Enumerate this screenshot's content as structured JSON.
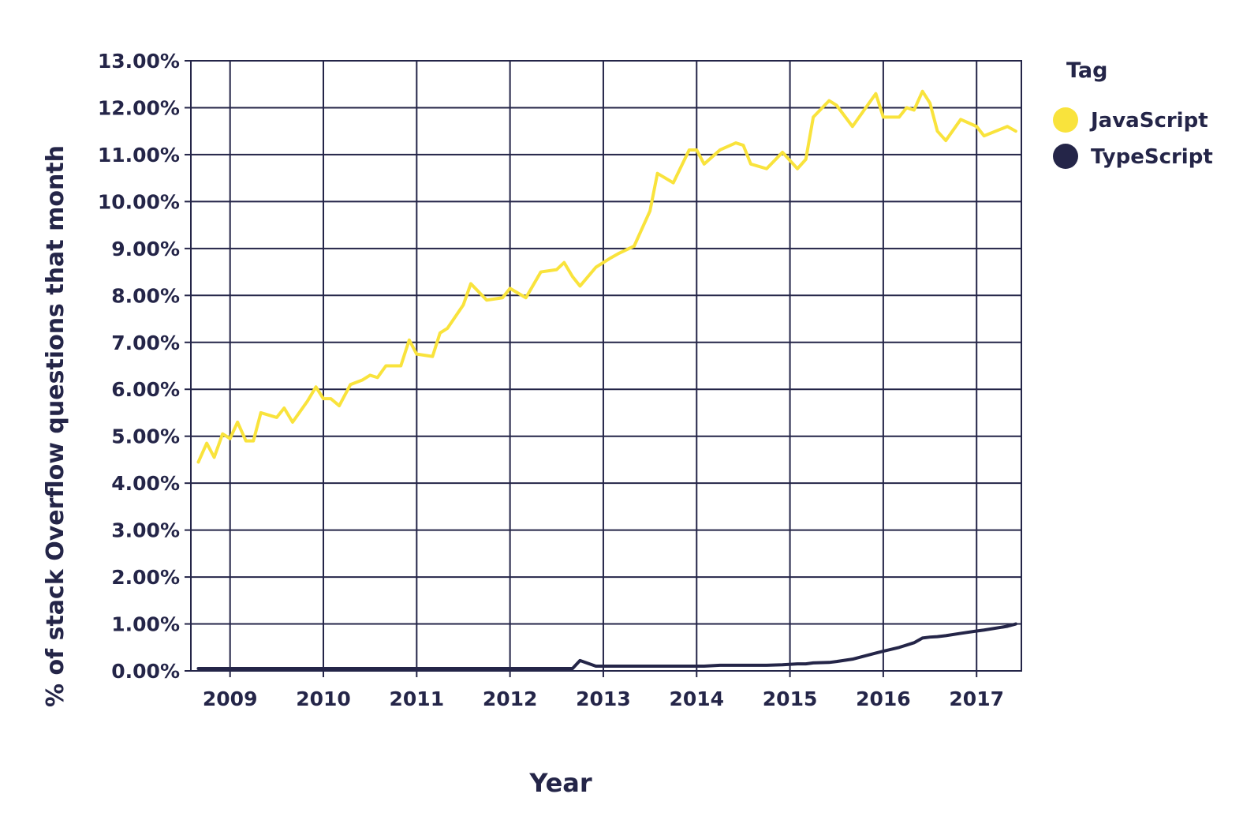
{
  "chart_data": {
    "type": "line",
    "x_label": "Year",
    "y_label": "% of stack Overflow questions that month",
    "legend_title": "Tag",
    "legend": "right",
    "grid": true,
    "xlim": [
      2008.58,
      2017.48
    ],
    "xticks": [
      2009,
      2010,
      2011,
      2012,
      2013,
      2014,
      2015,
      2016,
      2017
    ],
    "ylim": [
      0,
      13
    ],
    "yticks": [
      {
        "value": 0,
        "label": "0.00%"
      },
      {
        "value": 1,
        "label": "1.00%"
      },
      {
        "value": 2,
        "label": "2.00%"
      },
      {
        "value": 3,
        "label": "3.00%"
      },
      {
        "value": 4,
        "label": "4.00%"
      },
      {
        "value": 5,
        "label": "5.00%"
      },
      {
        "value": 6,
        "label": "6.00%"
      },
      {
        "value": 7,
        "label": "7.00%"
      },
      {
        "value": 8,
        "label": "8.00%"
      },
      {
        "value": 9,
        "label": "9.00%"
      },
      {
        "value": 10,
        "label": "10.00%"
      },
      {
        "value": 11,
        "label": "11.00%"
      },
      {
        "value": 12,
        "label": "12.00%"
      },
      {
        "value": 13,
        "label": "13.00%"
      }
    ],
    "x": [
      2008.66,
      2008.75,
      2008.83,
      2008.92,
      2009.0,
      2009.08,
      2009.17,
      2009.25,
      2009.33,
      2009.5,
      2009.58,
      2009.67,
      2009.83,
      2009.92,
      2010.0,
      2010.08,
      2010.17,
      2010.29,
      2010.42,
      2010.5,
      2010.58,
      2010.67,
      2010.83,
      2010.92,
      2011.0,
      2011.17,
      2011.25,
      2011.33,
      2011.5,
      2011.58,
      2011.75,
      2011.92,
      2012.0,
      2012.17,
      2012.33,
      2012.5,
      2012.58,
      2012.67,
      2012.75,
      2012.92,
      2013.08,
      2013.17,
      2013.33,
      2013.5,
      2013.58,
      2013.75,
      2013.92,
      2014.0,
      2014.08,
      2014.25,
      2014.42,
      2014.5,
      2014.58,
      2014.75,
      2014.92,
      2015.08,
      2015.17,
      2015.25,
      2015.42,
      2015.5,
      2015.67,
      2015.92,
      2016.0,
      2016.17,
      2016.25,
      2016.33,
      2016.42,
      2016.5,
      2016.58,
      2016.67,
      2016.83,
      2017.0,
      2017.08,
      2017.33,
      2017.42
    ],
    "series": [
      {
        "name": "JavaScript",
        "color": "#f9e33c",
        "values": [
          4.45,
          4.85,
          4.55,
          5.05,
          4.95,
          5.3,
          4.9,
          4.9,
          5.5,
          5.4,
          5.6,
          5.3,
          5.75,
          6.05,
          5.8,
          5.8,
          5.65,
          6.1,
          6.2,
          6.3,
          6.25,
          6.5,
          6.5,
          7.05,
          6.75,
          6.7,
          7.2,
          7.3,
          7.8,
          8.25,
          7.9,
          7.95,
          8.15,
          7.95,
          8.5,
          8.55,
          8.7,
          8.4,
          8.2,
          8.6,
          8.8,
          8.9,
          9.05,
          9.8,
          10.6,
          10.4,
          11.1,
          11.1,
          10.8,
          11.1,
          11.25,
          11.2,
          10.8,
          10.7,
          11.05,
          10.7,
          10.9,
          11.8,
          12.15,
          12.05,
          11.6,
          12.3,
          11.8,
          11.8,
          12.0,
          11.95,
          12.35,
          12.1,
          11.5,
          11.3,
          11.75,
          11.6,
          11.4,
          11.6,
          11.5
        ]
      },
      {
        "name": "TypeScript",
        "color": "#242548",
        "values": [
          0.05,
          0.05,
          0.05,
          0.05,
          0.05,
          0.05,
          0.05,
          0.05,
          0.05,
          0.05,
          0.05,
          0.05,
          0.05,
          0.05,
          0.05,
          0.05,
          0.05,
          0.05,
          0.05,
          0.05,
          0.05,
          0.05,
          0.05,
          0.05,
          0.05,
          0.05,
          0.05,
          0.05,
          0.05,
          0.05,
          0.05,
          0.05,
          0.05,
          0.05,
          0.05,
          0.05,
          0.05,
          0.05,
          0.22,
          0.1,
          0.1,
          0.1,
          0.1,
          0.1,
          0.1,
          0.1,
          0.1,
          0.1,
          0.1,
          0.12,
          0.12,
          0.12,
          0.12,
          0.12,
          0.13,
          0.15,
          0.15,
          0.17,
          0.18,
          0.2,
          0.25,
          0.38,
          0.42,
          0.5,
          0.55,
          0.6,
          0.7,
          0.72,
          0.73,
          0.75,
          0.8,
          0.85,
          0.87,
          0.95,
          1.0
        ]
      }
    ]
  }
}
